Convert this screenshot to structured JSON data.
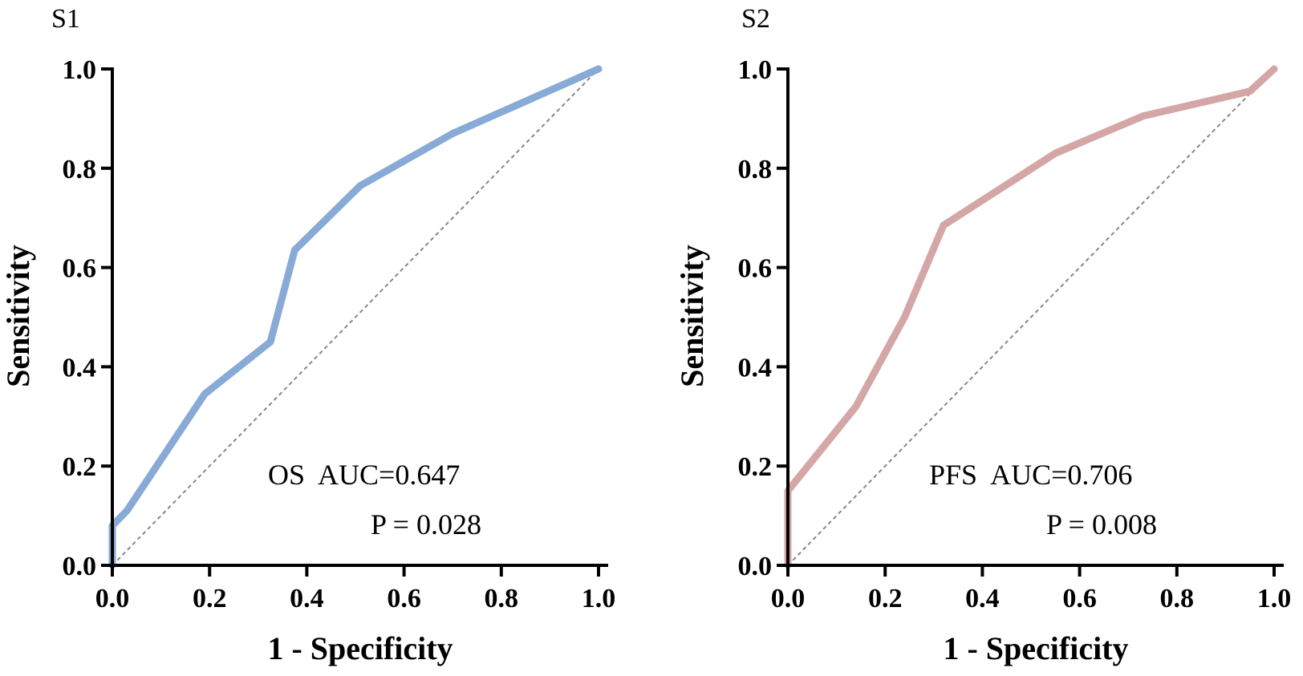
{
  "chart_data": [
    {
      "panel": "S1",
      "type": "line",
      "xlabel": "1 - Specificity",
      "ylabel": "Sensitivity",
      "xlim": [
        0,
        1
      ],
      "ylim": [
        0,
        1
      ],
      "xticks": [
        "0.0",
        "0.2",
        "0.4",
        "0.6",
        "0.8",
        "1.0"
      ],
      "yticks": [
        "0.0",
        "0.2",
        "0.4",
        "0.6",
        "0.8",
        "1.0"
      ],
      "annotation": "OS  AUC=0.647",
      "p_value": "P = 0.028",
      "series": [
        {
          "name": "OS",
          "color": "#88aad6",
          "x": [
            0.0,
            0.0,
            0.03,
            0.19,
            0.325,
            0.375,
            0.51,
            0.7,
            1.0
          ],
          "y": [
            0.0,
            0.08,
            0.11,
            0.345,
            0.45,
            0.635,
            0.765,
            0.87,
            1.0
          ]
        }
      ],
      "reference_line": {
        "x": [
          0,
          1
        ],
        "y": [
          0,
          1
        ],
        "style": "dashed",
        "color": "#888888"
      }
    },
    {
      "panel": "S2",
      "type": "line",
      "xlabel": "1 - Specificity",
      "ylabel": "Sensitivity",
      "xlim": [
        0,
        1
      ],
      "ylim": [
        0,
        1
      ],
      "xticks": [
        "0.0",
        "0.2",
        "0.4",
        "0.6",
        "0.8",
        "1.0"
      ],
      "yticks": [
        "0.0",
        "0.2",
        "0.4",
        "0.6",
        "0.8",
        "1.0"
      ],
      "annotation": "PFS  AUC=0.706",
      "p_value": "P = 0.008",
      "series": [
        {
          "name": "PFS",
          "color": "#d4a6a6",
          "x": [
            0.0,
            0.0,
            0.14,
            0.24,
            0.32,
            0.55,
            0.73,
            0.95,
            1.0
          ],
          "y": [
            0.0,
            0.15,
            0.32,
            0.5,
            0.685,
            0.83,
            0.905,
            0.955,
            1.0
          ]
        }
      ],
      "reference_line": {
        "x": [
          0,
          1
        ],
        "y": [
          0,
          1
        ],
        "style": "dashed",
        "color": "#888888"
      }
    }
  ]
}
